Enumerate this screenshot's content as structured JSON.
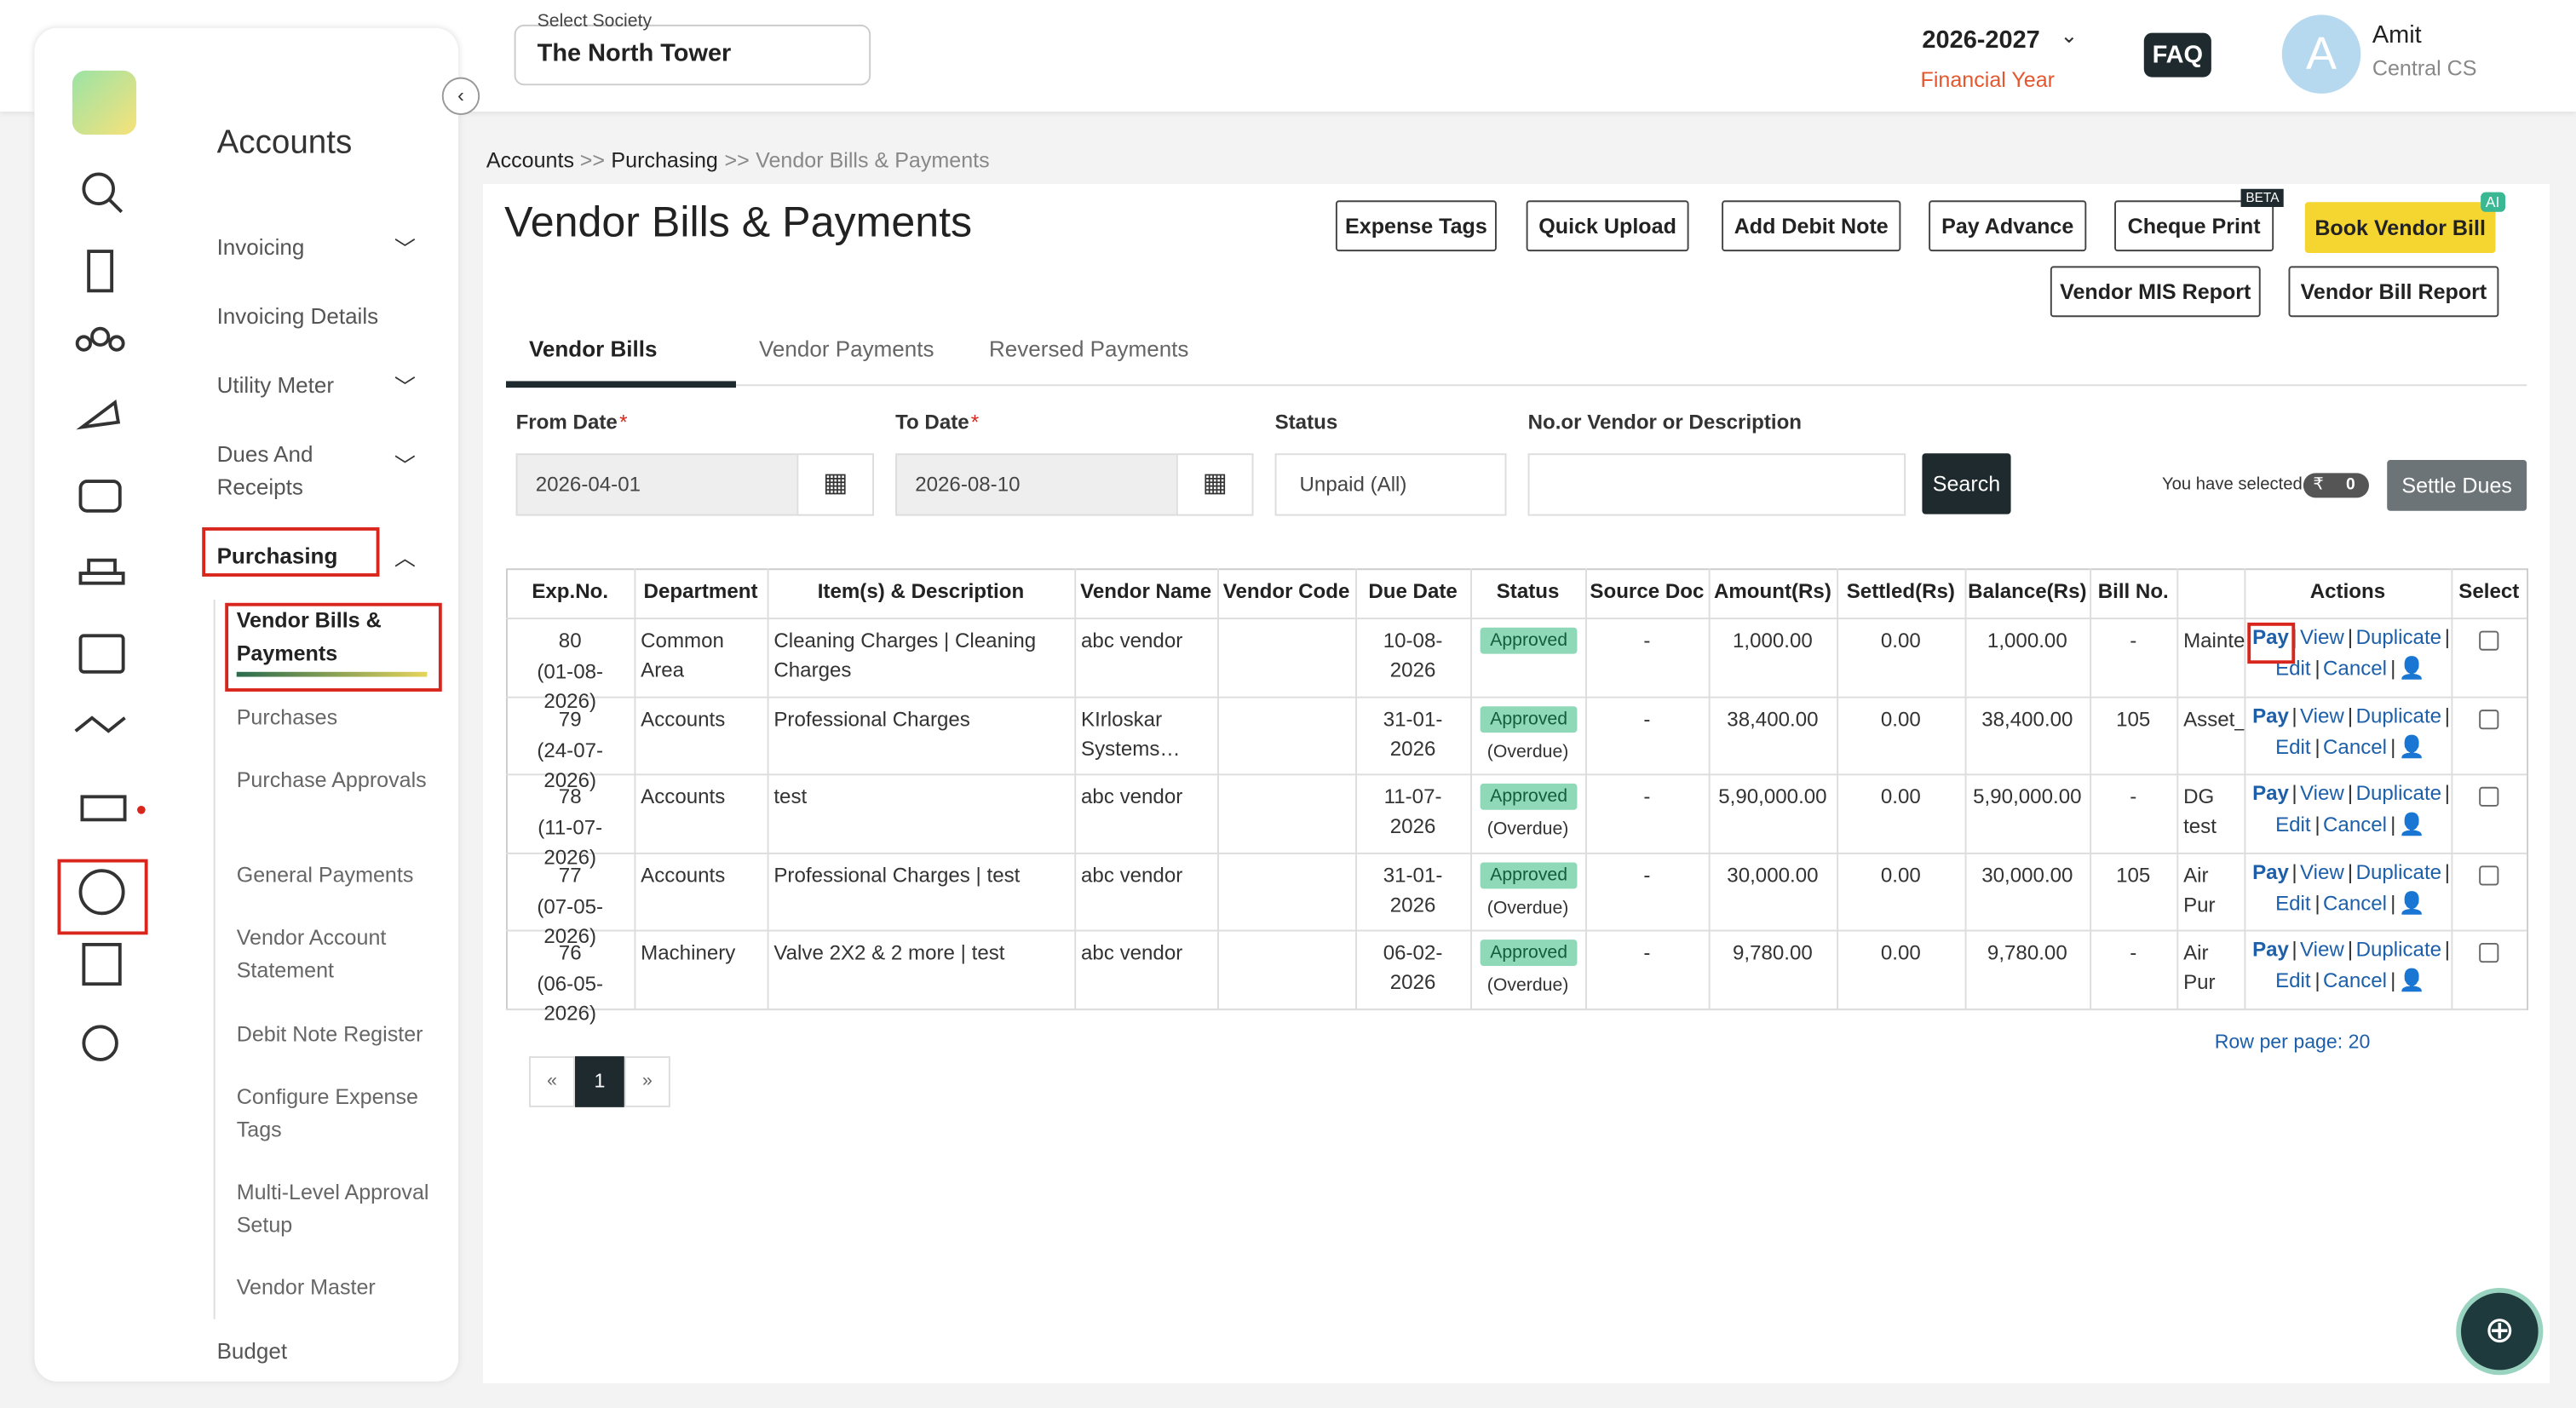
{
  "header": {
    "society_label": "Select Society",
    "society": "The North Tower",
    "year": "2026-2027",
    "year_label": "Financial Year",
    "faq": "FAQ",
    "avatar": "A",
    "user": "Amit",
    "role": "Central CS"
  },
  "sidebar": {
    "title": "Accounts",
    "items": [
      "Invoicing",
      "Invoicing Details",
      "Utility Meter",
      "Dues And Receipts",
      "Purchasing"
    ],
    "sub_items": [
      "Vendor Bills & Payments",
      "Purchases",
      "Purchase Approvals",
      "General Payments",
      "Vendor Account Statement",
      "Debit Note Register",
      "Configure Expense Tags",
      "Multi-Level Approval Setup",
      "Vendor Master"
    ],
    "last_item": "Budget"
  },
  "breadcrumb": {
    "items": [
      "Accounts",
      "Purchasing",
      "Vendor Bills & Payments"
    ],
    "separator": ">>"
  },
  "page": {
    "title": "Vendor Bills & Payments",
    "buttons": [
      "Expense Tags",
      "Quick Upload",
      "Add Debit Note",
      "Pay Advance",
      "Cheque Print",
      "Book Vendor Bill",
      "Vendor MIS Report",
      "Vendor Bill Report"
    ],
    "beta_badge": "BETA",
    "ai_badge": "AI",
    "tabs": [
      "Vendor Bills",
      "Vendor Payments",
      "Reversed Payments"
    ]
  },
  "filters": {
    "from_label": "From Date",
    "to_label": "To Date",
    "required": "*",
    "from": "2026-04-01",
    "to": "2026-08-10",
    "status_label": "Status",
    "status": "Unpaid (All)",
    "search_label": "No.or Vendor or Description",
    "search_button": "Search",
    "selected_label": "You have selected",
    "currency": "₹",
    "selected_count": "0",
    "settle": "Settle Dues"
  },
  "table": {
    "headers": [
      "Exp.No.",
      "Department",
      "Item(s) & Description",
      "Vendor Name",
      "Vendor Code",
      "Due Date",
      "Status",
      "Source Doc",
      "Amount(Rs)",
      "Settled(Rs)",
      "Balance(Rs)",
      "Bill No."
    ],
    "actions_header": "Actions",
    "select_header": "Select",
    "actions": [
      "Pay",
      "View",
      "Duplicate",
      "Edit",
      "Cancel"
    ],
    "separator": "|",
    "rows": [
      {
        "exp_no": "80",
        "date": "(01-08-2026)",
        "department": "Common Area",
        "items": "Cleaning Charges | Cleaning Charges",
        "vendor": "abc vendor",
        "due_date": "10-08-2026",
        "status": "Approved",
        "source_doc": "-",
        "amount": "1,000.00",
        "settled": "0.00",
        "balance": "1,000.00",
        "bill_no": "-",
        "narration": "Mainte"
      },
      {
        "exp_no": "79",
        "date": "(24-07-2026)",
        "department": "Accounts",
        "items": "Professional Charges",
        "vendor": "KIrloskar Systems…",
        "due_date": "31-01-2026",
        "status": "Approved",
        "status_note": "(Overdue)",
        "source_doc": "-",
        "amount": "38,400.00",
        "settled": "0.00",
        "balance": "38,400.00",
        "bill_no": "105",
        "narration": "Asset_"
      },
      {
        "exp_no": "78",
        "date": "(11-07-2026)",
        "department": "Accounts",
        "items": "test",
        "vendor": "abc vendor",
        "due_date": "11-07-2026",
        "status": "Approved",
        "status_note": "(Overdue)",
        "source_doc": "-",
        "amount": "5,90,000.00",
        "settled": "0.00",
        "balance": "5,90,000.00",
        "bill_no": "-",
        "narration": "DG test"
      },
      {
        "exp_no": "77",
        "date": "(07-05-2026)",
        "department": "Accounts",
        "items": "Professional Charges | test",
        "vendor": "abc vendor",
        "due_date": "31-01-2026",
        "status": "Approved",
        "status_note": "(Overdue)",
        "source_doc": "-",
        "amount": "30,000.00",
        "settled": "0.00",
        "balance": "30,000.00",
        "bill_no": "105",
        "narration": "Air Pur"
      },
      {
        "exp_no": "76",
        "date": "(06-05-2026)",
        "department": "Machinery",
        "items": "Valve 2X2 & 2 more | test",
        "vendor": "abc vendor",
        "due_date": "06-02-2026",
        "status": "Approved",
        "status_note": "(Overdue)",
        "source_doc": "-",
        "amount": "9,780.00",
        "settled": "0.00",
        "balance": "9,780.00",
        "bill_no": "-",
        "narration": "Air Pur Purifie"
      }
    ]
  },
  "pagination": {
    "prev": "«",
    "page": "1",
    "next": "»",
    "rows_per_page": "Row per page: 20"
  }
}
